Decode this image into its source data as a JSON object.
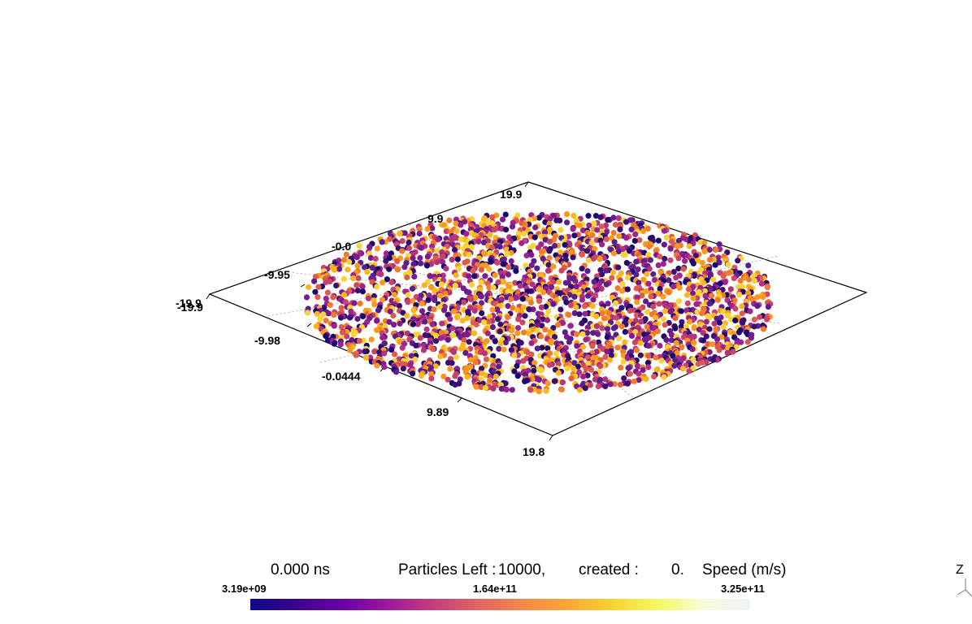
{
  "viewport": {
    "tick_labels": {
      "left_corner_a": "-19.9",
      "left_corner_b": "-19.9",
      "back_a": "19.9",
      "back_b": "9.9",
      "mid_a": "-0.0",
      "axis_x_1": "-9.95",
      "axis_y_1": "-9.98",
      "axis_y_2": "-0.0444",
      "axis_y_3": "9.89",
      "front_corner": "19.8"
    }
  },
  "status": {
    "time": "0.000 ns",
    "particles_label": "Particles Left :",
    "particles_value": "10000,",
    "created_label": "created :",
    "created_value": "0.",
    "scalar_title": "Speed (m/s)"
  },
  "colorbar": {
    "min": "3.19e+09",
    "mid": "1.64e+11",
    "max": "3.25e+11",
    "colormap": [
      "#0d0887",
      "#3b048f",
      "#6a00a8",
      "#9c179e",
      "#c43c7d",
      "#e16462",
      "#f48849",
      "#fca636",
      "#f9d333",
      "#f5f962",
      "#f7fbd9",
      "#eef3f8"
    ]
  },
  "particles": {
    "count_rendered": 2600,
    "palette": [
      "#1a0a6e",
      "#3b0f70",
      "#5a1f8a",
      "#7a1c8e",
      "#9b2490",
      "#b3337f",
      "#c84468",
      "#de5a4b",
      "#f07b2f",
      "#f89a1c",
      "#fbb51f",
      "#f7d33a"
    ]
  },
  "triad": {
    "z_label": "Z"
  }
}
